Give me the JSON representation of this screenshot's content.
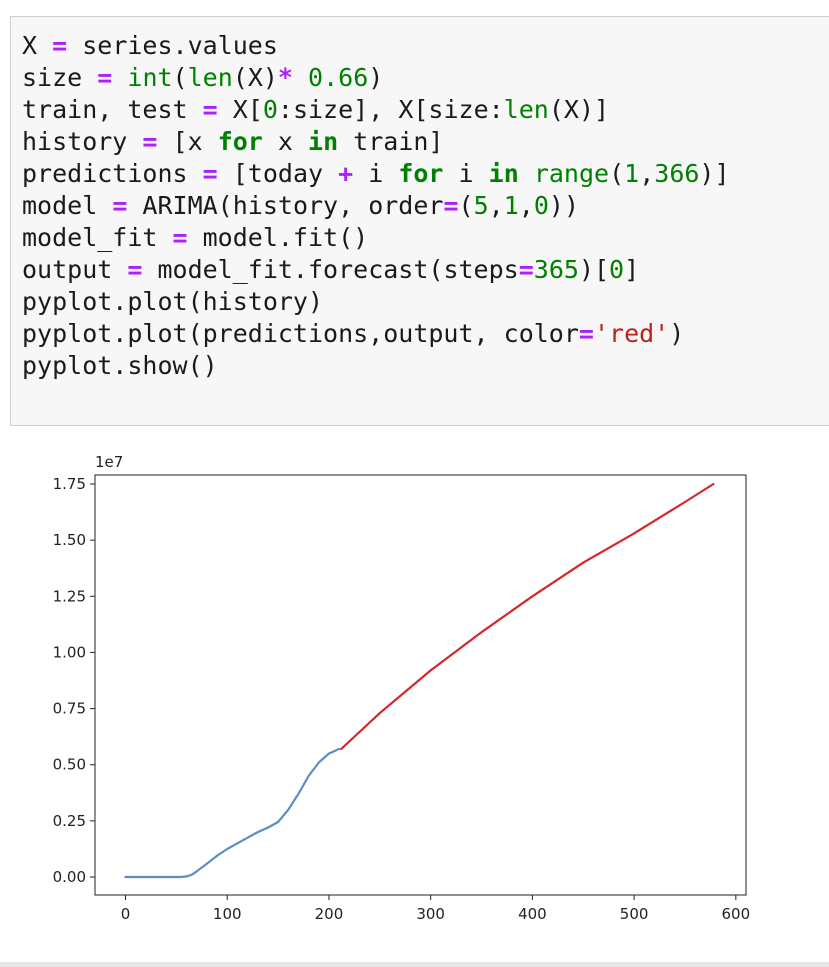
{
  "code_cell": {
    "lines": [
      [
        {
          "t": "X ",
          "c": "plain"
        },
        {
          "t": "=",
          "c": "op"
        },
        {
          "t": " series.values",
          "c": "plain"
        }
      ],
      [
        {
          "t": "size ",
          "c": "plain"
        },
        {
          "t": "=",
          "c": "op"
        },
        {
          "t": " ",
          "c": "plain"
        },
        {
          "t": "int",
          "c": "bi"
        },
        {
          "t": "(",
          "c": "plain"
        },
        {
          "t": "len",
          "c": "bi"
        },
        {
          "t": "(X)",
          "c": "plain"
        },
        {
          "t": "*",
          "c": "op"
        },
        {
          "t": " ",
          "c": "plain"
        },
        {
          "t": "0.66",
          "c": "num"
        },
        {
          "t": ")",
          "c": "plain"
        }
      ],
      [
        {
          "t": "train, test ",
          "c": "plain"
        },
        {
          "t": "=",
          "c": "op"
        },
        {
          "t": " X[",
          "c": "plain"
        },
        {
          "t": "0",
          "c": "num"
        },
        {
          "t": ":size], X[size:",
          "c": "plain"
        },
        {
          "t": "len",
          "c": "bi"
        },
        {
          "t": "(X)]",
          "c": "plain"
        }
      ],
      [
        {
          "t": "history ",
          "c": "plain"
        },
        {
          "t": "=",
          "c": "op"
        },
        {
          "t": " [x ",
          "c": "plain"
        },
        {
          "t": "for",
          "c": "kw"
        },
        {
          "t": " x ",
          "c": "plain"
        },
        {
          "t": "in",
          "c": "kw"
        },
        {
          "t": " train]",
          "c": "plain"
        }
      ],
      [
        {
          "t": "predictions ",
          "c": "plain"
        },
        {
          "t": "=",
          "c": "op"
        },
        {
          "t": " [today ",
          "c": "plain"
        },
        {
          "t": "+",
          "c": "op"
        },
        {
          "t": " i ",
          "c": "plain"
        },
        {
          "t": "for",
          "c": "kw"
        },
        {
          "t": " i ",
          "c": "plain"
        },
        {
          "t": "in",
          "c": "kw"
        },
        {
          "t": " ",
          "c": "plain"
        },
        {
          "t": "range",
          "c": "bi"
        },
        {
          "t": "(",
          "c": "plain"
        },
        {
          "t": "1",
          "c": "num"
        },
        {
          "t": ",",
          "c": "plain"
        },
        {
          "t": "366",
          "c": "num"
        },
        {
          "t": ")]",
          "c": "plain"
        }
      ],
      [
        {
          "t": "model ",
          "c": "plain"
        },
        {
          "t": "=",
          "c": "op"
        },
        {
          "t": " ARIMA(history, order",
          "c": "plain"
        },
        {
          "t": "=",
          "c": "op"
        },
        {
          "t": "(",
          "c": "plain"
        },
        {
          "t": "5",
          "c": "num"
        },
        {
          "t": ",",
          "c": "plain"
        },
        {
          "t": "1",
          "c": "num"
        },
        {
          "t": ",",
          "c": "plain"
        },
        {
          "t": "0",
          "c": "num"
        },
        {
          "t": "))",
          "c": "plain"
        }
      ],
      [
        {
          "t": "model_fit ",
          "c": "plain"
        },
        {
          "t": "=",
          "c": "op"
        },
        {
          "t": " model.fit()",
          "c": "plain"
        }
      ],
      [
        {
          "t": "output ",
          "c": "plain"
        },
        {
          "t": "=",
          "c": "op"
        },
        {
          "t": " model_fit.forecast(steps",
          "c": "plain"
        },
        {
          "t": "=",
          "c": "op"
        },
        {
          "t": "365",
          "c": "num"
        },
        {
          "t": ")[",
          "c": "plain"
        },
        {
          "t": "0",
          "c": "num"
        },
        {
          "t": "]",
          "c": "plain"
        }
      ],
      [
        {
          "t": "pyplot.plot(history)",
          "c": "plain"
        }
      ],
      [
        {
          "t": "pyplot.plot(predictions,output, color",
          "c": "plain"
        },
        {
          "t": "=",
          "c": "op"
        },
        {
          "t": "'red'",
          "c": "str"
        },
        {
          "t": ")",
          "c": "plain"
        }
      ],
      [
        {
          "t": "pyplot.show()",
          "c": "plain"
        }
      ]
    ]
  },
  "chart_data": {
    "type": "line",
    "title": "",
    "xlabel": "",
    "ylabel": "",
    "y_offset_text": "1e7",
    "xlim": [
      -30,
      610
    ],
    "ylim": [
      -0.08,
      1.79
    ],
    "y_scale_factor": 10000000,
    "xticks": [
      0,
      100,
      200,
      300,
      400,
      500,
      600
    ],
    "xtick_labels": [
      "0",
      "100",
      "200",
      "300",
      "400",
      "500",
      "600"
    ],
    "yticks": [
      0.0,
      0.25,
      0.5,
      0.75,
      1.0,
      1.25,
      1.5,
      1.75
    ],
    "ytick_labels": [
      "0.00",
      "0.25",
      "0.50",
      "0.75",
      "1.00",
      "1.25",
      "1.50",
      "1.75"
    ],
    "grid": false,
    "colors": {
      "history": "#5b8ec6",
      "forecast": "#d62728"
    },
    "series": [
      {
        "color_key": "history",
        "x": [
          0,
          20,
          40,
          55,
          60,
          65,
          70,
          80,
          90,
          100,
          110,
          120,
          130,
          140,
          150,
          160,
          170,
          180,
          190,
          200,
          210
        ],
        "y": [
          0.0,
          0.0,
          0.0,
          0.0,
          0.003,
          0.01,
          0.025,
          0.06,
          0.095,
          0.125,
          0.15,
          0.175,
          0.2,
          0.22,
          0.245,
          0.3,
          0.37,
          0.45,
          0.51,
          0.55,
          0.57
        ]
      },
      {
        "color_key": "forecast",
        "x": [
          212,
          250,
          300,
          350,
          400,
          450,
          500,
          550,
          578
        ],
        "y": [
          0.57,
          0.73,
          0.92,
          1.09,
          1.25,
          1.4,
          1.53,
          1.67,
          1.75
        ]
      }
    ]
  }
}
